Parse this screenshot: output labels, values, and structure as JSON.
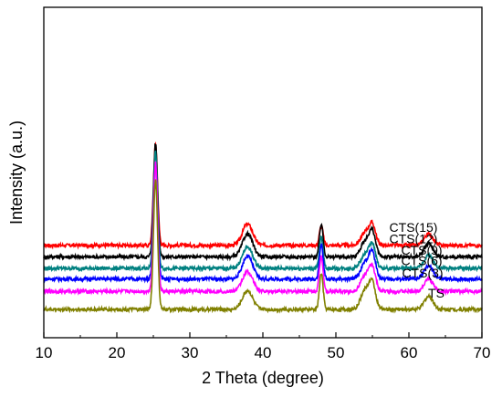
{
  "chart_data": {
    "type": "line",
    "title": "",
    "xlabel": "2 Theta (degree)",
    "ylabel": "Intensity (a.u.)",
    "xlim": [
      10,
      70
    ],
    "xticks": [
      10,
      20,
      30,
      40,
      50,
      60,
      70
    ],
    "yticks_shown": false,
    "grid": false,
    "legend": "inline labels above each curve",
    "peak_positions_2theta": [
      25.3,
      37.9,
      48.0,
      54.0,
      55.0,
      62.7
    ],
    "series": [
      {
        "name": "CTS(15)",
        "color": "#ff0000",
        "baseline": 7.8,
        "peaks": [
          12.3,
          2.6,
          2.4,
          1.5,
          2.4,
          1.4
        ]
      },
      {
        "name": "CTS(12)",
        "color": "#000000",
        "baseline": 6.4,
        "peaks": [
          13.8,
          2.8,
          4.0,
          1.8,
          2.9,
          1.6
        ]
      },
      {
        "name": "CTS(9)",
        "color": "#008080",
        "baseline": 5.0,
        "peaks": [
          14.2,
          2.6,
          3.8,
          1.6,
          2.7,
          1.6
        ]
      },
      {
        "name": "CTS(6)",
        "color": "#0000ff",
        "baseline": 3.7,
        "peaks": [
          13.9,
          2.8,
          4.2,
          1.9,
          3.0,
          1.6
        ]
      },
      {
        "name": "CTS(3)",
        "color": "#ff00ff",
        "baseline": 2.2,
        "peaks": [
          15.6,
          2.4,
          4.3,
          1.9,
          2.7,
          1.5
        ]
      },
      {
        "name": "TS",
        "color": "#808000",
        "baseline": 0.0,
        "peaks": [
          15.8,
          2.3,
          4.4,
          2.3,
          3.0,
          1.6
        ]
      }
    ]
  }
}
